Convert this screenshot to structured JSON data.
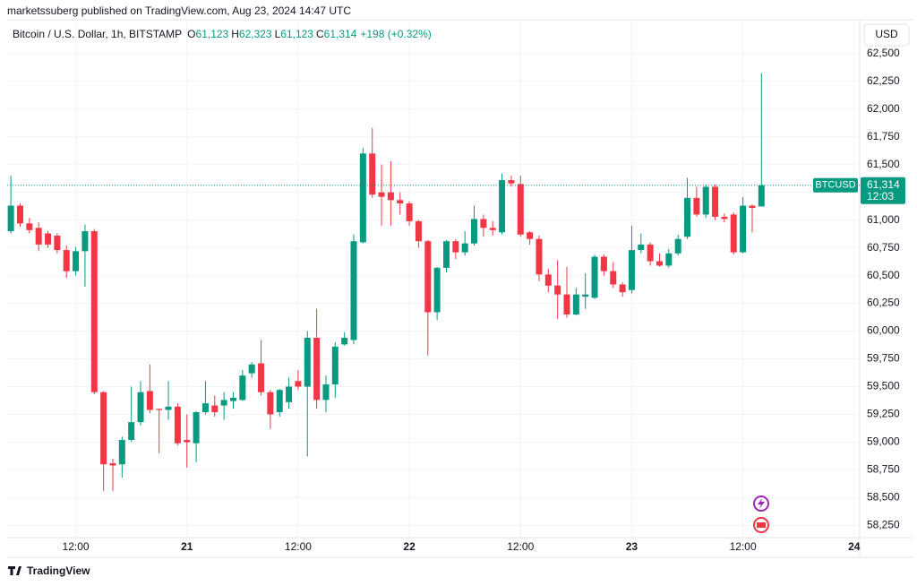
{
  "header": {
    "publisher": "marketssuberg published on TradingView.com, Aug 23, 2024 14:47 UTC"
  },
  "chart_data": {
    "type": "candlestick",
    "title": "Bitcoin / U.S. Dollar, 1h, BITSTAMP",
    "ohlc_legend": [
      {
        "key": "O",
        "value": "61,123"
      },
      {
        "key": "H",
        "value": "62,323"
      },
      {
        "key": "L",
        "value": "61,123"
      },
      {
        "key": "C",
        "value": "61,314"
      }
    ],
    "change": "+198 (+0.32%)",
    "currency": "USD",
    "symbol": "BTCUSD",
    "last_price": {
      "value": 61314,
      "label": "61,314"
    },
    "countdown": "12:03",
    "up_color": "#089981",
    "down_color": "#f23645",
    "open": [
      60900,
      61130,
      60970,
      60930,
      60880,
      60860,
      60730,
      60540,
      60720,
      60900,
      59450,
      58810,
      58800,
      59020,
      59180,
      59460,
      59300,
      59290,
      59320,
      59020,
      58990,
      59270,
      59330,
      59330,
      59370,
      59380,
      59620,
      59710,
      59450,
      59270,
      59360,
      59550,
      59500,
      59940,
      59380,
      59520,
      59880,
      59920,
      60800,
      61600,
      61250,
      61250,
      61180,
      61150,
      60990,
      60810,
      60170,
      60570,
      60810,
      60710,
      60790,
      61010,
      60930,
      60890,
      61360,
      61325,
      60890,
      60830,
      60510,
      60410,
      60330,
      60150,
      60310,
      60300,
      60670,
      60540,
      60420,
      60370,
      60730,
      60780,
      60630,
      60590,
      60700,
      60850,
      61200,
      61050,
      61300,
      61030,
      61050,
      60710,
      61130,
      61123
    ],
    "high": [
      61400,
      61150,
      61020,
      60980,
      60900,
      60880,
      60770,
      60760,
      60960,
      60920,
      59460,
      58850,
      59050,
      59500,
      59550,
      59700,
      59300,
      59550,
      59350,
      59250,
      59280,
      59550,
      59420,
      59450,
      59450,
      59650,
      59720,
      59920,
      59470,
      59480,
      59580,
      59650,
      60000,
      60200,
      59600,
      59900,
      59990,
      60870,
      61650,
      61830,
      61500,
      61530,
      61250,
      61170,
      61000,
      60820,
      60580,
      60820,
      60830,
      60900,
      61130,
      61050,
      60990,
      61420,
      61400,
      61400,
      60900,
      60860,
      60560,
      60640,
      60580,
      60390,
      60520,
      60690,
      60690,
      60620,
      60440,
      60950,
      60880,
      60800,
      60700,
      60740,
      60870,
      61380,
      61300,
      61320,
      61320,
      61060,
      61070,
      61210,
      61140,
      62323
    ],
    "low": [
      60880,
      60940,
      60880,
      60720,
      60750,
      60700,
      60480,
      60500,
      60400,
      59430,
      58560,
      58560,
      58680,
      59000,
      59150,
      59260,
      58900,
      59200,
      58970,
      58770,
      58820,
      59250,
      59230,
      59200,
      59300,
      59370,
      59580,
      59420,
      59120,
      59230,
      59300,
      59470,
      58870,
      59300,
      59270,
      59400,
      59870,
      59880,
      60790,
      61200,
      60950,
      60950,
      61050,
      60950,
      60750,
      59780,
      60100,
      60530,
      60650,
      60680,
      60770,
      60850,
      60860,
      60870,
      61300,
      60850,
      60780,
      60450,
      60350,
      60110,
      60120,
      60140,
      60200,
      60290,
      60500,
      60390,
      60310,
      60340,
      60700,
      60590,
      60580,
      60570,
      60680,
      60830,
      61030,
      61020,
      61000,
      60980,
      60690,
      60700,
      60890,
      61123
    ],
    "close": [
      61130,
      60970,
      60910,
      60780,
      60780,
      60730,
      60540,
      60720,
      60900,
      59450,
      58800,
      58790,
      59020,
      59180,
      59450,
      59290,
      59290,
      59320,
      58990,
      59000,
      59270,
      59350,
      59270,
      59380,
      59400,
      59600,
      59700,
      59450,
      59250,
      59470,
      59500,
      59500,
      59940,
      59380,
      59520,
      59860,
      59940,
      60810,
      61600,
      61230,
      61210,
      61180,
      61150,
      60990,
      60810,
      60170,
      60570,
      60810,
      60710,
      60790,
      61010,
      60930,
      60910,
      61360,
      61330,
      60870,
      60830,
      60510,
      60410,
      60330,
      60150,
      60330,
      60330,
      60670,
      60540,
      60420,
      60350,
      60730,
      60780,
      60630,
      60590,
      60700,
      60830,
      61200,
      61050,
      61300,
      61030,
      61010,
      60710,
      61130,
      61110,
      61314
    ],
    "xlim": [
      -0.4,
      91.6
    ],
    "xticks": [
      {
        "value": 7,
        "label": "12:00"
      },
      {
        "value": 19,
        "label": "21"
      },
      {
        "value": 31,
        "label": "12:00"
      },
      {
        "value": 43,
        "label": "22"
      },
      {
        "value": 55,
        "label": "12:00"
      },
      {
        "value": 67,
        "label": "23"
      },
      {
        "value": 79,
        "label": "12:00"
      },
      {
        "value": 91,
        "label": "24"
      }
    ],
    "ylim": [
      58140,
      62805
    ],
    "yticks": [
      {
        "value": 58250,
        "label": "58,250"
      },
      {
        "value": 58500,
        "label": "58,500"
      },
      {
        "value": 58750,
        "label": "58,750"
      },
      {
        "value": 59000,
        "label": "59,000"
      },
      {
        "value": 59250,
        "label": "59,250"
      },
      {
        "value": 59500,
        "label": "59,500"
      },
      {
        "value": 59750,
        "label": "59,750"
      },
      {
        "value": 60000,
        "label": "60,000"
      },
      {
        "value": 60250,
        "label": "60,250"
      },
      {
        "value": 60500,
        "label": "60,500"
      },
      {
        "value": 60750,
        "label": "60,750"
      },
      {
        "value": 61000,
        "label": "61,000"
      },
      {
        "value": 61250,
        "label": "61,250"
      },
      {
        "value": 61500,
        "label": "61,500"
      },
      {
        "value": 61750,
        "label": "61,750"
      },
      {
        "value": 62000,
        "label": "62,000"
      },
      {
        "value": 62250,
        "label": "62,250"
      },
      {
        "value": 62500,
        "label": "62,500"
      }
    ],
    "grid": true,
    "brand": "TradingView"
  }
}
